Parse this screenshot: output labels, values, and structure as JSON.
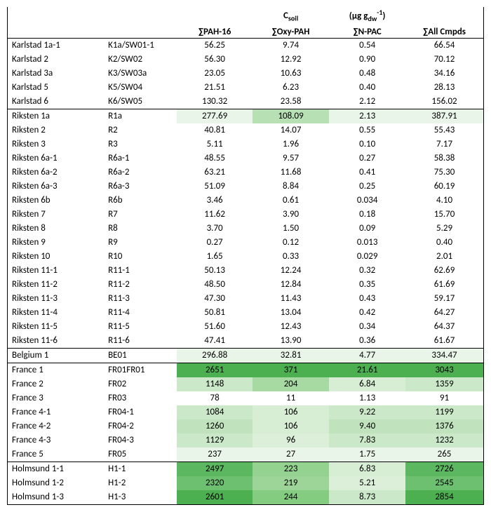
{
  "headers": {
    "topCenterPrefix": "C",
    "topCenterSub": "soil",
    "topRightUnit1": "(µg g",
    "topRightUnitSub": "dw",
    "topRightUnitSup": "-1",
    "topRightUnit2": ")",
    "col1": "∑PAH-16",
    "col2": "∑Oxy-PAH",
    "col3": "∑N-PAC",
    "col4": "∑All Cmpds"
  },
  "groups": [
    {
      "rows": [
        {
          "site": "Karlstad 1a-1",
          "code": "K1a/SW01-1",
          "v": [
            {
              "t": "56.25",
              "c": ""
            },
            {
              "t": "9.74",
              "c": ""
            },
            {
              "t": "0.54",
              "c": ""
            },
            {
              "t": "66.54",
              "c": ""
            }
          ]
        },
        {
          "site": "Karlstad 2",
          "code": "K2/SW02",
          "v": [
            {
              "t": "56.30",
              "c": ""
            },
            {
              "t": "12.92",
              "c": ""
            },
            {
              "t": "0.90",
              "c": ""
            },
            {
              "t": "70.12",
              "c": ""
            }
          ]
        },
        {
          "site": "Karlstad 3a",
          "code": "K3/SW03a",
          "v": [
            {
              "t": "23.05",
              "c": ""
            },
            {
              "t": "10.63",
              "c": ""
            },
            {
              "t": "0.48",
              "c": ""
            },
            {
              "t": "34.16",
              "c": ""
            }
          ]
        },
        {
          "site": "Karlstad 5",
          "code": "K5/SW04",
          "v": [
            {
              "t": "21.51",
              "c": ""
            },
            {
              "t": "6.23",
              "c": ""
            },
            {
              "t": "0.40",
              "c": ""
            },
            {
              "t": "28.13",
              "c": ""
            }
          ]
        },
        {
          "site": "Karlstad 6",
          "code": "K6/SW05",
          "v": [
            {
              "t": "130.32",
              "c": ""
            },
            {
              "t": "23.58",
              "c": ""
            },
            {
              "t": "2.12",
              "c": ""
            },
            {
              "t": "156.02",
              "c": ""
            }
          ]
        }
      ]
    },
    {
      "rows": [
        {
          "site": "Riksten 1a",
          "code": "R1a",
          "v": [
            {
              "t": "277.69",
              "c": "#eaf5ea"
            },
            {
              "t": "108.09",
              "c": "#b7e0b4"
            },
            {
              "t": "2.13",
              "c": "#eaf5ea"
            },
            {
              "t": "387.91",
              "c": "#eaf5ea"
            }
          ]
        },
        {
          "site": "Riksten 2",
          "code": "R2",
          "v": [
            {
              "t": "40.81",
              "c": ""
            },
            {
              "t": "14.07",
              "c": ""
            },
            {
              "t": "0.55",
              "c": ""
            },
            {
              "t": "55.43",
              "c": ""
            }
          ]
        },
        {
          "site": "Riksten 3",
          "code": "R3",
          "v": [
            {
              "t": "5.11",
              "c": ""
            },
            {
              "t": "1.96",
              "c": ""
            },
            {
              "t": "0.10",
              "c": ""
            },
            {
              "t": "7.17",
              "c": ""
            }
          ]
        },
        {
          "site": "Riksten 6a-1",
          "code": "R6a-1",
          "v": [
            {
              "t": "48.55",
              "c": ""
            },
            {
              "t": "9.57",
              "c": ""
            },
            {
              "t": "0.27",
              "c": ""
            },
            {
              "t": "58.38",
              "c": ""
            }
          ]
        },
        {
          "site": "Riksten 6a-2",
          "code": "R6a-2",
          "v": [
            {
              "t": "63.21",
              "c": ""
            },
            {
              "t": "11.68",
              "c": ""
            },
            {
              "t": "0.41",
              "c": ""
            },
            {
              "t": "75.30",
              "c": ""
            }
          ]
        },
        {
          "site": "Riksten 6a-3",
          "code": "R6a-3",
          "v": [
            {
              "t": "51.09",
              "c": ""
            },
            {
              "t": "8.84",
              "c": ""
            },
            {
              "t": "0.25",
              "c": ""
            },
            {
              "t": "60.19",
              "c": ""
            }
          ]
        },
        {
          "site": "Riksten 6b",
          "code": "R6b",
          "v": [
            {
              "t": "3.46",
              "c": ""
            },
            {
              "t": "0.61",
              "c": ""
            },
            {
              "t": "0.034",
              "c": ""
            },
            {
              "t": "4.10",
              "c": ""
            }
          ]
        },
        {
          "site": "Riksten 7",
          "code": "R7",
          "v": [
            {
              "t": "11.62",
              "c": ""
            },
            {
              "t": "3.90",
              "c": ""
            },
            {
              "t": "0.18",
              "c": ""
            },
            {
              "t": "15.70",
              "c": ""
            }
          ]
        },
        {
          "site": "Riksten 8",
          "code": "R8",
          "v": [
            {
              "t": "3.70",
              "c": ""
            },
            {
              "t": "1.50",
              "c": ""
            },
            {
              "t": "0.09",
              "c": ""
            },
            {
              "t": "5.29",
              "c": ""
            }
          ]
        },
        {
          "site": "Riksten 9",
          "code": "R9",
          "v": [
            {
              "t": "0.27",
              "c": ""
            },
            {
              "t": "0.12",
              "c": ""
            },
            {
              "t": "0.013",
              "c": ""
            },
            {
              "t": "0.40",
              "c": ""
            }
          ]
        },
        {
          "site": "Riksten 10",
          "code": "R10",
          "v": [
            {
              "t": "1.65",
              "c": ""
            },
            {
              "t": "0.33",
              "c": ""
            },
            {
              "t": "0.029",
              "c": ""
            },
            {
              "t": "2.01",
              "c": ""
            }
          ]
        },
        {
          "site": "Riksten 11-1",
          "code": "R11-1",
          "v": [
            {
              "t": "50.13",
              "c": ""
            },
            {
              "t": "12.24",
              "c": ""
            },
            {
              "t": "0.32",
              "c": ""
            },
            {
              "t": "62.69",
              "c": ""
            }
          ]
        },
        {
          "site": "Riksten 11-2",
          "code": "R11-2",
          "v": [
            {
              "t": "48.50",
              "c": ""
            },
            {
              "t": "12.84",
              "c": ""
            },
            {
              "t": "0.35",
              "c": ""
            },
            {
              "t": "61.69",
              "c": ""
            }
          ]
        },
        {
          "site": "Riksten 11-3",
          "code": "R11-3",
          "v": [
            {
              "t": "47.30",
              "c": ""
            },
            {
              "t": "11.43",
              "c": ""
            },
            {
              "t": "0.43",
              "c": ""
            },
            {
              "t": "59.17",
              "c": ""
            }
          ]
        },
        {
          "site": "Riksten 11-4",
          "code": "R11-4",
          "v": [
            {
              "t": "50.81",
              "c": ""
            },
            {
              "t": "13.04",
              "c": ""
            },
            {
              "t": "0.42",
              "c": ""
            },
            {
              "t": "64.27",
              "c": ""
            }
          ]
        },
        {
          "site": "Riksten 11-5",
          "code": "R11-5",
          "v": [
            {
              "t": "51.60",
              "c": ""
            },
            {
              "t": "12.43",
              "c": ""
            },
            {
              "t": "0.34",
              "c": ""
            },
            {
              "t": "64.37",
              "c": ""
            }
          ]
        },
        {
          "site": "Riksten 11-6",
          "code": "R11-6",
          "v": [
            {
              "t": "47.41",
              "c": ""
            },
            {
              "t": "13.90",
              "c": ""
            },
            {
              "t": "0.36",
              "c": ""
            },
            {
              "t": "61.67",
              "c": ""
            }
          ]
        }
      ]
    },
    {
      "rows": [
        {
          "site": "Belgium 1",
          "code": "BE01",
          "v": [
            {
              "t": "296.88",
              "c": "#eaf5ea"
            },
            {
              "t": "32.81",
              "c": "#eaf5ea"
            },
            {
              "t": "4.77",
              "c": "#eaf5ea"
            },
            {
              "t": "334.47",
              "c": "#eaf5ea"
            }
          ]
        }
      ]
    },
    {
      "rows": [
        {
          "site": "France 1",
          "code": "FR01FR01",
          "v": [
            {
              "t": "2651",
              "c": "#4caf50"
            },
            {
              "t": "371",
              "c": "#4caf50"
            },
            {
              "t": "21.61",
              "c": "#4caf50"
            },
            {
              "t": "3043",
              "c": "#4caf50"
            }
          ]
        },
        {
          "site": "France 2",
          "code": "FR02",
          "v": [
            {
              "t": "1148",
              "c": "#cbe8c9"
            },
            {
              "t": "204",
              "c": "#a7d9a3"
            },
            {
              "t": "6.84",
              "c": "#d7edd4"
            },
            {
              "t": "1359",
              "c": "#cbe8c9"
            }
          ]
        },
        {
          "site": "France 3",
          "code": "FR03",
          "v": [
            {
              "t": "78",
              "c": ""
            },
            {
              "t": "11",
              "c": ""
            },
            {
              "t": "1.13",
              "c": ""
            },
            {
              "t": "91",
              "c": ""
            }
          ]
        },
        {
          "site": "France 4-1",
          "code": "FR04-1",
          "v": [
            {
              "t": "1084",
              "c": "#cbe8c9"
            },
            {
              "t": "106",
              "c": "#d7edd4"
            },
            {
              "t": "9.22",
              "c": "#cbe8c9"
            },
            {
              "t": "1199",
              "c": "#cbe8c9"
            }
          ]
        },
        {
          "site": "France 4-2",
          "code": "FR04-2",
          "v": [
            {
              "t": "1260",
              "c": "#c0e3bd"
            },
            {
              "t": "106",
              "c": "#d7edd4"
            },
            {
              "t": "9.40",
              "c": "#c0e3bd"
            },
            {
              "t": "1376",
              "c": "#c0e3bd"
            }
          ]
        },
        {
          "site": "France 4-3",
          "code": "FR04-3",
          "v": [
            {
              "t": "1129",
              "c": "#cbe8c9"
            },
            {
              "t": "96",
              "c": "#dcefd9"
            },
            {
              "t": "7.83",
              "c": "#cbe8c9"
            },
            {
              "t": "1232",
              "c": "#cbe8c9"
            }
          ]
        },
        {
          "site": "France 5",
          "code": "FR05",
          "v": [
            {
              "t": "237",
              "c": "#eaf5ea"
            },
            {
              "t": "27",
              "c": "#eaf5ea"
            },
            {
              "t": "1.75",
              "c": "#eaf5ea"
            },
            {
              "t": "265",
              "c": "#eaf5ea"
            }
          ]
        }
      ]
    },
    {
      "rows": [
        {
          "site": "Holmsund 1-1",
          "code": "H1-1",
          "v": [
            {
              "t": "2497",
              "c": "#5cb860"
            },
            {
              "t": "223",
              "c": "#94d290"
            },
            {
              "t": "6.83",
              "c": "#d7edd4"
            },
            {
              "t": "2726",
              "c": "#5cb860"
            }
          ]
        },
        {
          "site": "Holmsund 1-2",
          "code": "H1-2",
          "v": [
            {
              "t": "2320",
              "c": "#6ec071"
            },
            {
              "t": "219",
              "c": "#9dd599"
            },
            {
              "t": "5.21",
              "c": "#dcefd9"
            },
            {
              "t": "2545",
              "c": "#6ec071"
            }
          ]
        },
        {
          "site": "Holmsund 1-3",
          "code": "H1-3",
          "v": [
            {
              "t": "2601",
              "c": "#4caf50"
            },
            {
              "t": "244",
              "c": "#84cc80"
            },
            {
              "t": "8.73",
              "c": "#cbe8c9"
            },
            {
              "t": "2854",
              "c": "#4caf50"
            }
          ]
        }
      ]
    }
  ]
}
